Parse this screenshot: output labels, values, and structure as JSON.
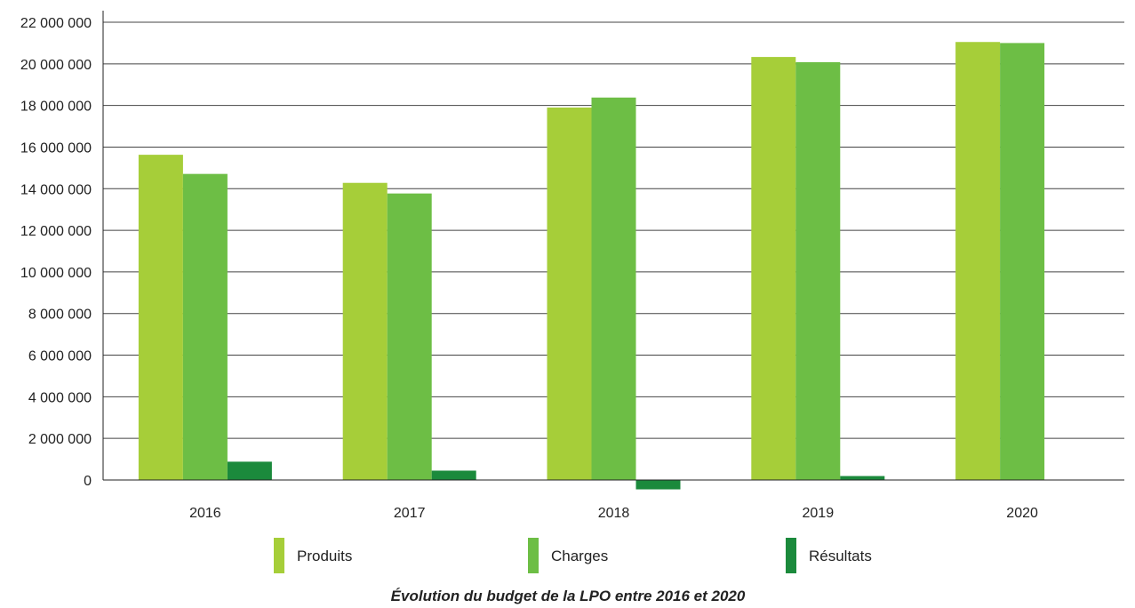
{
  "chart_data": {
    "type": "bar",
    "categories": [
      "2016",
      "2017",
      "2018",
      "2019",
      "2020"
    ],
    "series": [
      {
        "name": "Produits",
        "color": "#a6ce39",
        "values": [
          15630000,
          14280000,
          17900000,
          20330000,
          21050000
        ]
      },
      {
        "name": "Charges",
        "color": "#6dbe45",
        "values": [
          14710000,
          13770000,
          18380000,
          20080000,
          21000000
        ]
      },
      {
        "name": "Résultats",
        "color": "#1b8a3c",
        "values": [
          880000,
          450000,
          -450000,
          190000,
          0
        ]
      }
    ],
    "ylim": [
      0,
      22000000
    ],
    "yticks": [
      0,
      2000000,
      4000000,
      6000000,
      8000000,
      10000000,
      12000000,
      14000000,
      16000000,
      18000000,
      20000000,
      22000000
    ],
    "ytick_labels": [
      "0",
      "2 000 000",
      "4 000 000",
      "6 000 000",
      "8 000 000",
      "10 000 000",
      "12 000 000",
      "14 000 000",
      "16 000 000",
      "18 000 000",
      "20 000 000",
      "22 000 000"
    ],
    "grid": true,
    "legend_position": "bottom",
    "title": "Évolution du budget de la LPO entre 2016 et 2020",
    "xlabel": "",
    "ylabel": ""
  }
}
